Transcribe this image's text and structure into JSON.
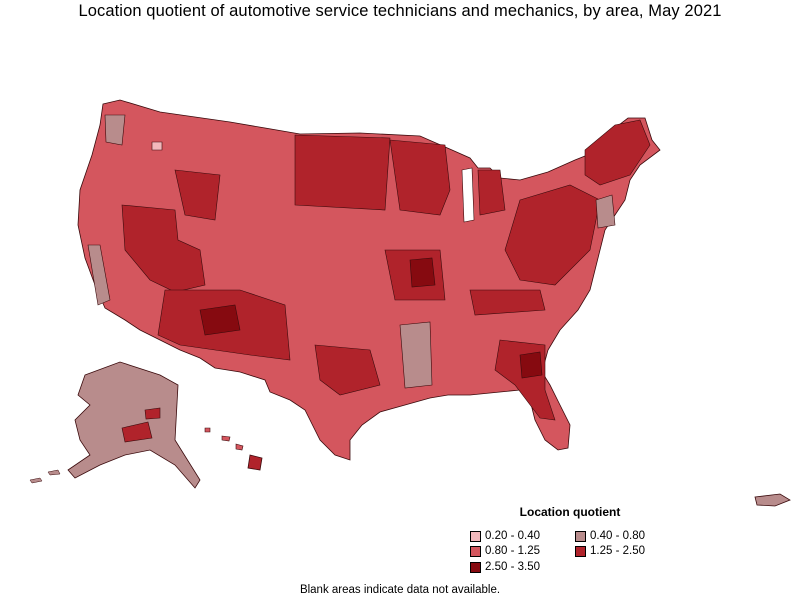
{
  "title": "Location quotient of automotive service technicians and mechanics, by area, May 2021",
  "legend": {
    "title": "Location quotient",
    "items": [
      {
        "label": "0.20 - 0.40",
        "color": "#f2b8bc"
      },
      {
        "label": "0.40 - 0.80",
        "color": "#b88c8c"
      },
      {
        "label": "0.80 - 1.25",
        "color": "#d4565e"
      },
      {
        "label": "1.25 - 2.50",
        "color": "#b0232b"
      },
      {
        "label": "2.50 - 3.50",
        "color": "#860a10"
      }
    ]
  },
  "footnote": "Blank areas indicate data not available."
}
